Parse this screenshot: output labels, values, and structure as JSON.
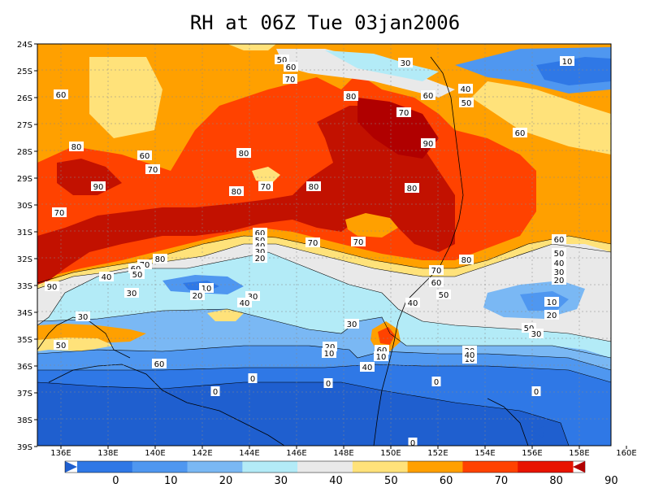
{
  "title": "RH at 06Z Tue 03jan2006",
  "map": {
    "lat_labels": [
      "24S",
      "25S",
      "26S",
      "27S",
      "28S",
      "29S",
      "30S",
      "31S",
      "32S",
      "33S",
      "34S",
      "35S",
      "36S",
      "37S",
      "38S",
      "39S"
    ],
    "lon_labels": [
      "136E",
      "138E",
      "140E",
      "142E",
      "144E",
      "146E",
      "148E",
      "150E",
      "152E",
      "154E",
      "156E",
      "158E",
      "160E"
    ]
  },
  "colorbar": {
    "labels": [
      "0",
      "10",
      "20",
      "30",
      "40",
      "50",
      "60",
      "70",
      "80",
      "90"
    ],
    "colors": [
      "#1f5fcf",
      "#2f78e6",
      "#4f97f0",
      "#7ab8f4",
      "#b3ebf7",
      "#e9e9e9",
      "#ffe27a",
      "#ffa000",
      "#ff4200",
      "#e81400",
      "#b00000"
    ]
  },
  "contour_labels": [
    {
      "t": "50"
    },
    {
      "t": "60"
    },
    {
      "t": "30"
    },
    {
      "t": "10"
    },
    {
      "t": "70"
    },
    {
      "t": "40"
    },
    {
      "t": "60"
    },
    {
      "t": "50"
    },
    {
      "t": "60"
    },
    {
      "t": "80"
    },
    {
      "t": "70"
    },
    {
      "t": "90"
    },
    {
      "t": "60"
    },
    {
      "t": "80"
    },
    {
      "t": "60"
    },
    {
      "t": "70"
    },
    {
      "t": "90"
    },
    {
      "t": "70"
    },
    {
      "t": "80"
    },
    {
      "t": "80"
    },
    {
      "t": "80"
    },
    {
      "t": "70"
    },
    {
      "t": "80"
    },
    {
      "t": "70"
    },
    {
      "t": "70"
    },
    {
      "t": "60"
    },
    {
      "t": "50"
    },
    {
      "t": "40"
    },
    {
      "t": "30"
    },
    {
      "t": "20"
    },
    {
      "t": "80"
    },
    {
      "t": "70"
    },
    {
      "t": "60"
    },
    {
      "t": "50"
    },
    {
      "t": "40"
    },
    {
      "t": "30"
    },
    {
      "t": "90"
    },
    {
      "t": "10"
    },
    {
      "t": "20"
    },
    {
      "t": "30"
    },
    {
      "t": "40"
    },
    {
      "t": "70"
    },
    {
      "t": "80"
    },
    {
      "t": "60"
    },
    {
      "t": "50"
    },
    {
      "t": "40"
    },
    {
      "t": "30"
    },
    {
      "t": "60"
    },
    {
      "t": "50"
    },
    {
      "t": "40"
    },
    {
      "t": "30"
    },
    {
      "t": "20"
    },
    {
      "t": "10"
    },
    {
      "t": "20"
    },
    {
      "t": "10"
    },
    {
      "t": "20"
    },
    {
      "t": "40"
    },
    {
      "t": "50"
    },
    {
      "t": "30"
    },
    {
      "t": "20"
    },
    {
      "t": "10"
    },
    {
      "t": "60"
    },
    {
      "t": "50"
    },
    {
      "t": "30"
    },
    {
      "t": "60"
    },
    {
      "t": "40"
    },
    {
      "t": "10"
    },
    {
      "t": "0"
    },
    {
      "t": "0"
    },
    {
      "t": "0"
    },
    {
      "t": "0"
    },
    {
      "t": "0"
    },
    {
      "t": "0"
    }
  ]
}
